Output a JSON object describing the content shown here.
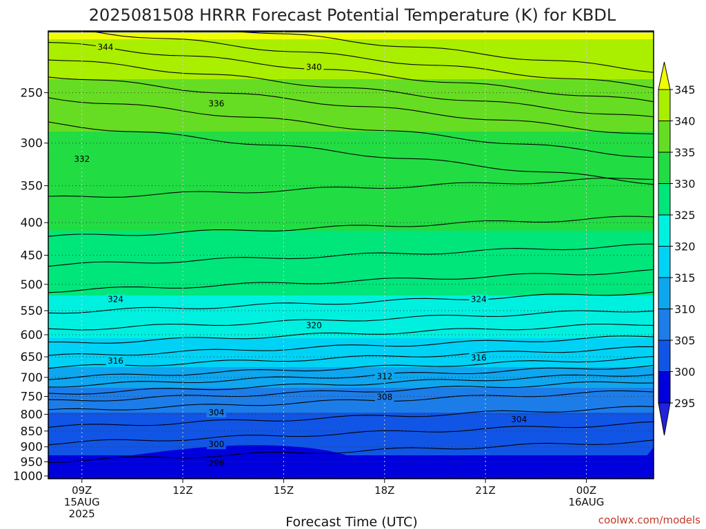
{
  "chart_data": {
    "type": "heatmap",
    "title": "2025081508 HRRR Forecast Potential Temperature (K) for KBDL",
    "xlabel": "Forecast Time (UTC)",
    "ylabel": "",
    "credit": "coolwx.com/models",
    "x_ticks": [
      {
        "hour": 9,
        "lines": [
          "09Z",
          "15AUG",
          "2025"
        ]
      },
      {
        "hour": 12,
        "lines": [
          "12Z"
        ]
      },
      {
        "hour": 15,
        "lines": [
          "15Z"
        ]
      },
      {
        "hour": 18,
        "lines": [
          "18Z"
        ]
      },
      {
        "hour": 21,
        "lines": [
          "21Z"
        ]
      },
      {
        "hour": 24,
        "lines": [
          "00Z",
          "16AUG"
        ]
      }
    ],
    "xlim": [
      8,
      26
    ],
    "y_ticks": [
      250,
      300,
      350,
      400,
      450,
      500,
      550,
      600,
      650,
      700,
      750,
      800,
      850,
      900,
      950,
      1000
    ],
    "ylim": [
      1010,
      200
    ],
    "y_scale": "log",
    "colorbar": {
      "levels": [
        295,
        300,
        305,
        310,
        315,
        320,
        325,
        330,
        335,
        340,
        345
      ],
      "colors": [
        "#2222dd",
        "#0000dd",
        "#1155e6",
        "#1c7de8",
        "#0ea6ee",
        "#00d2f5",
        "#00f0e0",
        "#00e67a",
        "#22dc44",
        "#66dd22",
        "#aaee00",
        "#f0ff00"
      ],
      "extend": "both"
    },
    "contour_labels": [
      {
        "value": "344",
        "hour": 9.7,
        "p": 212
      },
      {
        "value": "340",
        "hour": 15.9,
        "p": 228
      },
      {
        "value": "336",
        "hour": 13.0,
        "p": 260
      },
      {
        "value": "332",
        "hour": 9.0,
        "p": 318
      },
      {
        "value": "324",
        "hour": 10.0,
        "p": 528
      },
      {
        "value": "324",
        "hour": 20.8,
        "p": 528
      },
      {
        "value": "320",
        "hour": 15.9,
        "p": 580
      },
      {
        "value": "316",
        "hour": 10.0,
        "p": 660
      },
      {
        "value": "316",
        "hour": 20.8,
        "p": 652
      },
      {
        "value": "312",
        "hour": 18.0,
        "p": 698
      },
      {
        "value": "308",
        "hour": 18.0,
        "p": 752
      },
      {
        "value": "304",
        "hour": 13.0,
        "p": 795
      },
      {
        "value": "304",
        "hour": 22.0,
        "p": 815
      },
      {
        "value": "300",
        "hour": 13.0,
        "p": 892
      },
      {
        "value": "296",
        "hour": 13.0,
        "p": 955
      }
    ],
    "grid": true,
    "ground_color": "#a0522d"
  }
}
